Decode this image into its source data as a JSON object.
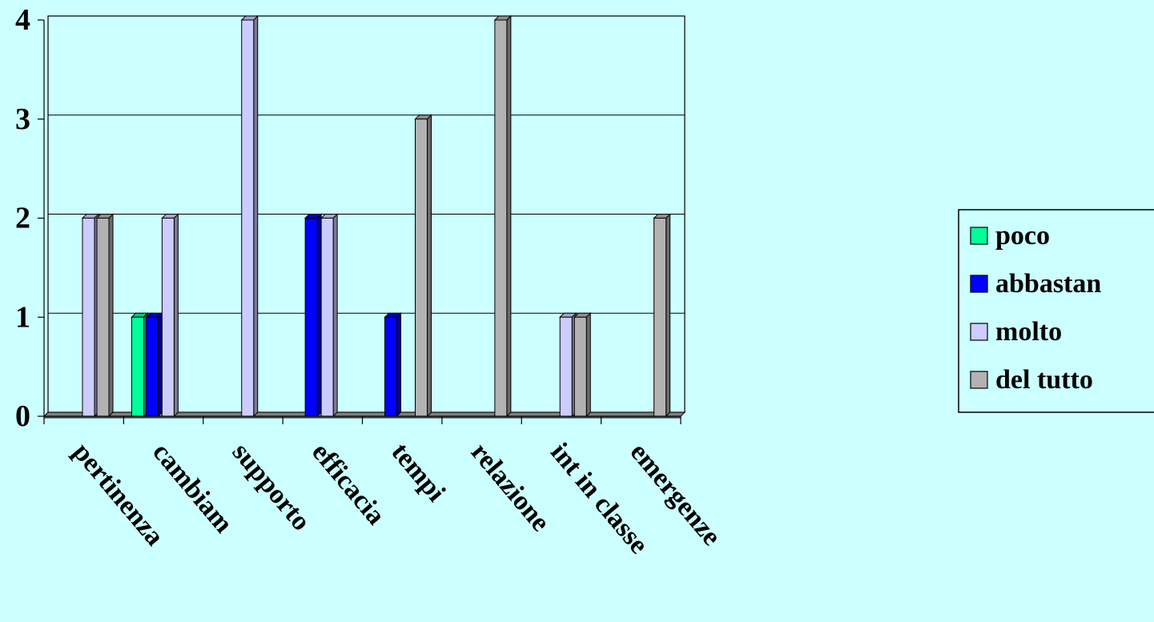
{
  "chart_data": {
    "type": "bar",
    "categories": [
      "pertinenza",
      "cambiam",
      "supporto",
      "efficacia",
      "tempi",
      "relazione",
      "int in classe",
      "emergenze"
    ],
    "series": [
      {
        "name": "poco",
        "color": "#00FF99",
        "values": [
          0,
          1,
          0,
          0,
          0,
          0,
          0,
          0
        ]
      },
      {
        "name": "abbastan",
        "color": "#0000FF",
        "values": [
          0,
          1,
          0,
          2,
          1,
          0,
          0,
          0
        ]
      },
      {
        "name": "molto",
        "color": "#CCCCFF",
        "values": [
          2,
          2,
          4,
          2,
          0,
          0,
          1,
          0
        ]
      },
      {
        "name": "del tutto",
        "color": "#B2B2B2",
        "values": [
          2,
          0,
          0,
          0,
          3,
          4,
          1,
          2
        ]
      }
    ],
    "yticks": [
      0,
      1,
      2,
      3,
      4
    ],
    "ylim": [
      0,
      4
    ],
    "grid": true,
    "legend_position": "right",
    "background": "#CCFFFF"
  }
}
